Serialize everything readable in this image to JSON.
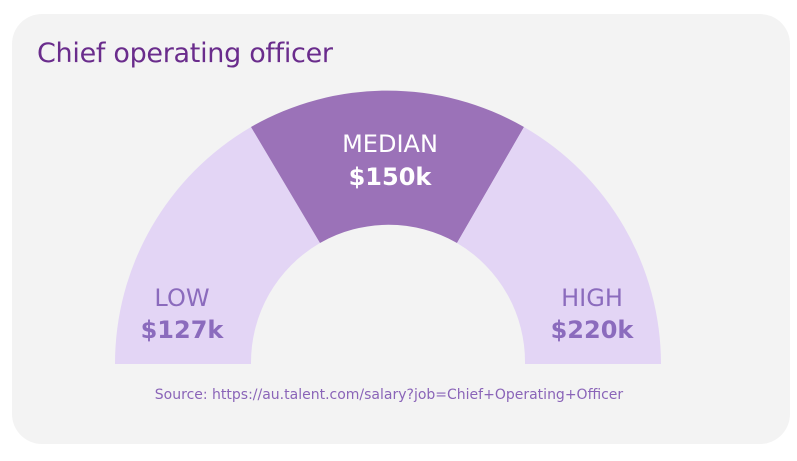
{
  "header": {
    "title": "Chief operating officer"
  },
  "chart_data": {
    "type": "gauge",
    "title": "Chief operating officer",
    "segments": [
      {
        "name": "LOW",
        "label": "$127k",
        "value": 127
      },
      {
        "name": "MEDIAN",
        "label": "$150k",
        "value": 150
      },
      {
        "name": "HIGH",
        "label": "$220k",
        "value": 220
      }
    ],
    "unit": "$k"
  },
  "footer": {
    "source": "Source: https://au.talent.com/salary?job=Chief+Operating+Officer"
  },
  "colors": {
    "light_segment": "#e3d5f5",
    "median_segment": "#9b72b8",
    "title": "#6a2c8c",
    "label_text": "#8b6bbd",
    "median_text": "#ffffff",
    "background": "#f3f3f3"
  }
}
